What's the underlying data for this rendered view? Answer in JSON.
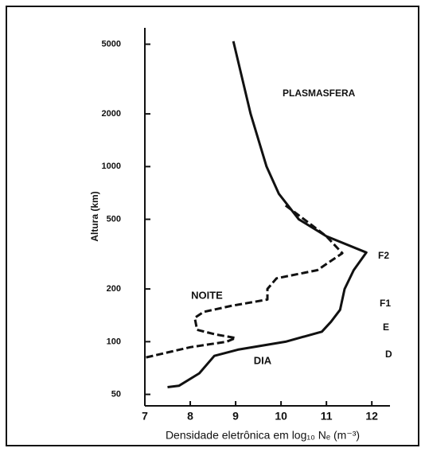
{
  "chart_data": {
    "type": "line",
    "xlabel": "Densidade eletrônica em log₁₀ Nₑ (m⁻³)",
    "ylabel": "Altura (km)",
    "xlim": [
      7,
      12.4
    ],
    "xticks": [
      7,
      8,
      9,
      10,
      11,
      12
    ],
    "ylim": [
      43,
      6200
    ],
    "yticks": [
      50,
      100,
      200,
      500,
      1000,
      2000,
      5000
    ],
    "ylog": true,
    "grid": false,
    "color": "#111111",
    "annotations": [
      "PLASMASFERA",
      "F2",
      "F1",
      "E",
      "D"
    ],
    "series": [
      {
        "name": "DIA",
        "style": "solid",
        "x": [
          8.95,
          9.33,
          9.68,
          9.95,
          10.39,
          11.0,
          11.88,
          11.6,
          11.4,
          11.3,
          11.1,
          10.9,
          10.1,
          9.05,
          8.53,
          8.2,
          7.75,
          7.5
        ],
        "values": [
          5200,
          2000,
          1000,
          700,
          500,
          400,
          323,
          256,
          200,
          152,
          130,
          114,
          100,
          90,
          83,
          66,
          56,
          55
        ]
      },
      {
        "name": "NOITE",
        "style": "dashed",
        "x": [
          10.1,
          10.6,
          11.0,
          11.35,
          10.8,
          9.9,
          9.7,
          9.7,
          8.9,
          8.3,
          8.1,
          8.15,
          8.55,
          9.0,
          8.8,
          8.0,
          7.0
        ],
        "values": [
          600,
          480,
          400,
          320,
          256,
          230,
          200,
          174,
          160,
          148,
          137,
          117,
          110,
          105,
          100,
          93,
          81
        ]
      }
    ]
  }
}
